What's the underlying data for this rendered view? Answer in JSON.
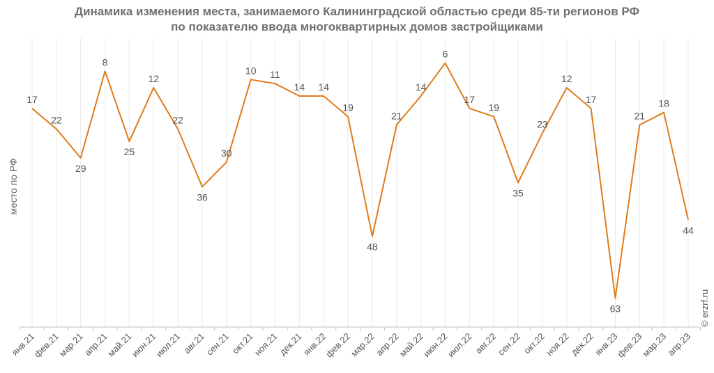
{
  "title_line1": "Динамика изменения места, занимаемого Калининградской областью среди 85-ти регионов РФ",
  "title_line2": "по показателю ввода многоквартирных домов застройщиками",
  "copyright": "© erzrf.ru",
  "chart_data": {
    "type": "line",
    "title": "Динамика изменения места, занимаемого Калининградской областью среди 85-ти регионов РФ по показателю ввода многоквартирных домов застройщиками",
    "xlabel": "",
    "ylabel": "место по РФ",
    "y_reversed": true,
    "ylim": [
      0,
      70
    ],
    "grid": "vertical",
    "color": "#E07B1A",
    "categories": [
      "янв.21",
      "фев.21",
      "мар.21",
      "апр.21",
      "май.21",
      "июн.21",
      "июл.21",
      "авг.21",
      "сен.21",
      "окт.21",
      "ноя.21",
      "дек.21",
      "янв.22",
      "фев.22",
      "мар.22",
      "апр.22",
      "май.22",
      "июн.22",
      "июл.22",
      "авг.22",
      "сен.22",
      "окт.22",
      "ноя.22",
      "дек.22",
      "янв.23",
      "фев.23",
      "мар.23",
      "апр.23"
    ],
    "values": [
      17,
      22,
      29,
      8,
      25,
      12,
      22,
      36,
      30,
      10,
      11,
      14,
      14,
      19,
      48,
      21,
      14,
      6,
      17,
      19,
      35,
      23,
      12,
      17,
      63,
      21,
      18,
      44
    ]
  }
}
